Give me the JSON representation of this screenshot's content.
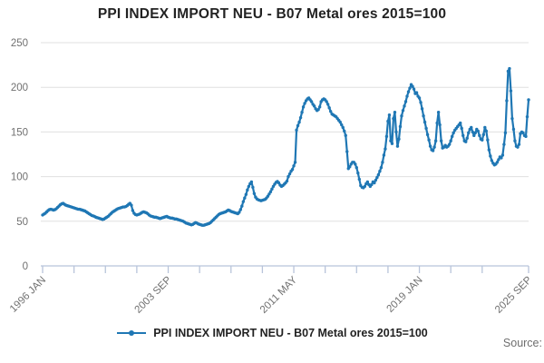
{
  "title": "PPI INDEX IMPORT NEU - B07 Metal ores 2015=100",
  "legend": {
    "label": "PPI INDEX IMPORT NEU - B07 Metal ores 2015=100"
  },
  "source_label": "Source:",
  "colors": {
    "line": "#1f77b4",
    "grid": "#e0e0e0",
    "axis": "#b8c4da",
    "title_text": "#222222",
    "tick_label": "#707070"
  },
  "chart_data": {
    "type": "line",
    "title": "PPI INDEX IMPORT NEU - B07 Metal ores 2015=100",
    "series_name": "PPI INDEX IMPORT NEU - B07 Metal ores 2015=100",
    "frequency": "monthly",
    "x_start": "1996 JAN",
    "x_end": "2025 SEP",
    "ylim": [
      0,
      250
    ],
    "y_ticks": [
      0,
      50,
      100,
      150,
      200,
      250
    ],
    "grid": "horizontal",
    "legend_position": "bottom",
    "x_tick_labels": [
      "1996 JAN",
      "2003 SEP",
      "2011 MAY",
      "2019 JAN",
      "2025 SEP"
    ],
    "x_tick_label_month_indices": [
      0,
      92,
      184,
      276,
      356
    ],
    "minor_tick_month_indices": [
      23,
      46,
      69,
      115,
      138,
      161,
      207,
      230,
      253,
      299,
      322
    ],
    "values": [
      57,
      58,
      59,
      60.5,
      62,
      63,
      63.5,
      63,
      62.5,
      63,
      64,
      65.5,
      67,
      68.5,
      69.5,
      70,
      69,
      68,
      67.5,
      67,
      66.5,
      66,
      65.5,
      65,
      64.5,
      64,
      63.5,
      63.5,
      63,
      62.5,
      62,
      61.5,
      60.5,
      59.5,
      58.5,
      57.5,
      56.5,
      56,
      55.5,
      54.5,
      54,
      53.5,
      53,
      52.5,
      52,
      52.5,
      53.5,
      54.5,
      55.5,
      57,
      58.5,
      60,
      61,
      62,
      63,
      64,
      64.5,
      65,
      65.5,
      66,
      66,
      66.5,
      67.5,
      69,
      70,
      68,
      62,
      59,
      57.5,
      57,
      57.5,
      58,
      59,
      60,
      60.5,
      60,
      59.5,
      58.5,
      57,
      56,
      55.5,
      55,
      54.5,
      54.5,
      54,
      53.5,
      53,
      53.5,
      54,
      54.5,
      55,
      55.5,
      54.5,
      54,
      53.5,
      53.5,
      53,
      52.5,
      52.5,
      52,
      51.5,
      51,
      50.5,
      50,
      49,
      48,
      47.5,
      47,
      46.5,
      46,
      46.5,
      47.5,
      48.5,
      48,
      47,
      46.5,
      46,
      45.5,
      45.5,
      46,
      46.5,
      47,
      47.5,
      48.5,
      50,
      51.5,
      53,
      54.5,
      56,
      57.5,
      58.5,
      59,
      59.5,
      60,
      60.5,
      61.5,
      62.5,
      62,
      61,
      60.5,
      60,
      59.5,
      59,
      58.5,
      60,
      63,
      67,
      72,
      76,
      80,
      85,
      89,
      92,
      94,
      88,
      81,
      77,
      75,
      74,
      73.5,
      73,
      73.5,
      74,
      74.5,
      76,
      78,
      80.5,
      83,
      86,
      89,
      91.5,
      93.5,
      94.5,
      93,
      90.5,
      89,
      90,
      91.5,
      93,
      95,
      100,
      103,
      106,
      108,
      112,
      116,
      152,
      157,
      161,
      166,
      172,
      178,
      182,
      185,
      187,
      188,
      186,
      184,
      181,
      179,
      176,
      174,
      175,
      178,
      184,
      186,
      187,
      186,
      184,
      181,
      177,
      173,
      170,
      169,
      168,
      167,
      165,
      163,
      161,
      158,
      155,
      151,
      146,
      128,
      109,
      111,
      114,
      116,
      116,
      114,
      110,
      104,
      97,
      90,
      88,
      87.5,
      89,
      92,
      94,
      91,
      89,
      91,
      94,
      93,
      96,
      99,
      102,
      106,
      110,
      116,
      124,
      131,
      145,
      162,
      169,
      140,
      137,
      165,
      172,
      150,
      134,
      142,
      156,
      168,
      174,
      179,
      184,
      190,
      195,
      199,
      203,
      201,
      198,
      193,
      194,
      190,
      188,
      183,
      176,
      168,
      161,
      154,
      147,
      141,
      134,
      130,
      129,
      133,
      140,
      160,
      172,
      158,
      140,
      132,
      133,
      135,
      133,
      134,
      136,
      140,
      145,
      149,
      152,
      154,
      156,
      158,
      160,
      154,
      146,
      140,
      139,
      143,
      149,
      153,
      155,
      150,
      146,
      149,
      153,
      151,
      146,
      142,
      141,
      147,
      155,
      151,
      141,
      130,
      123,
      118,
      115,
      113,
      114,
      116,
      119,
      122,
      121,
      124,
      136,
      149,
      185,
      218,
      221,
      196,
      165,
      153,
      140,
      134,
      133,
      136,
      148,
      150,
      149,
      146,
      145,
      167,
      186
    ]
  }
}
